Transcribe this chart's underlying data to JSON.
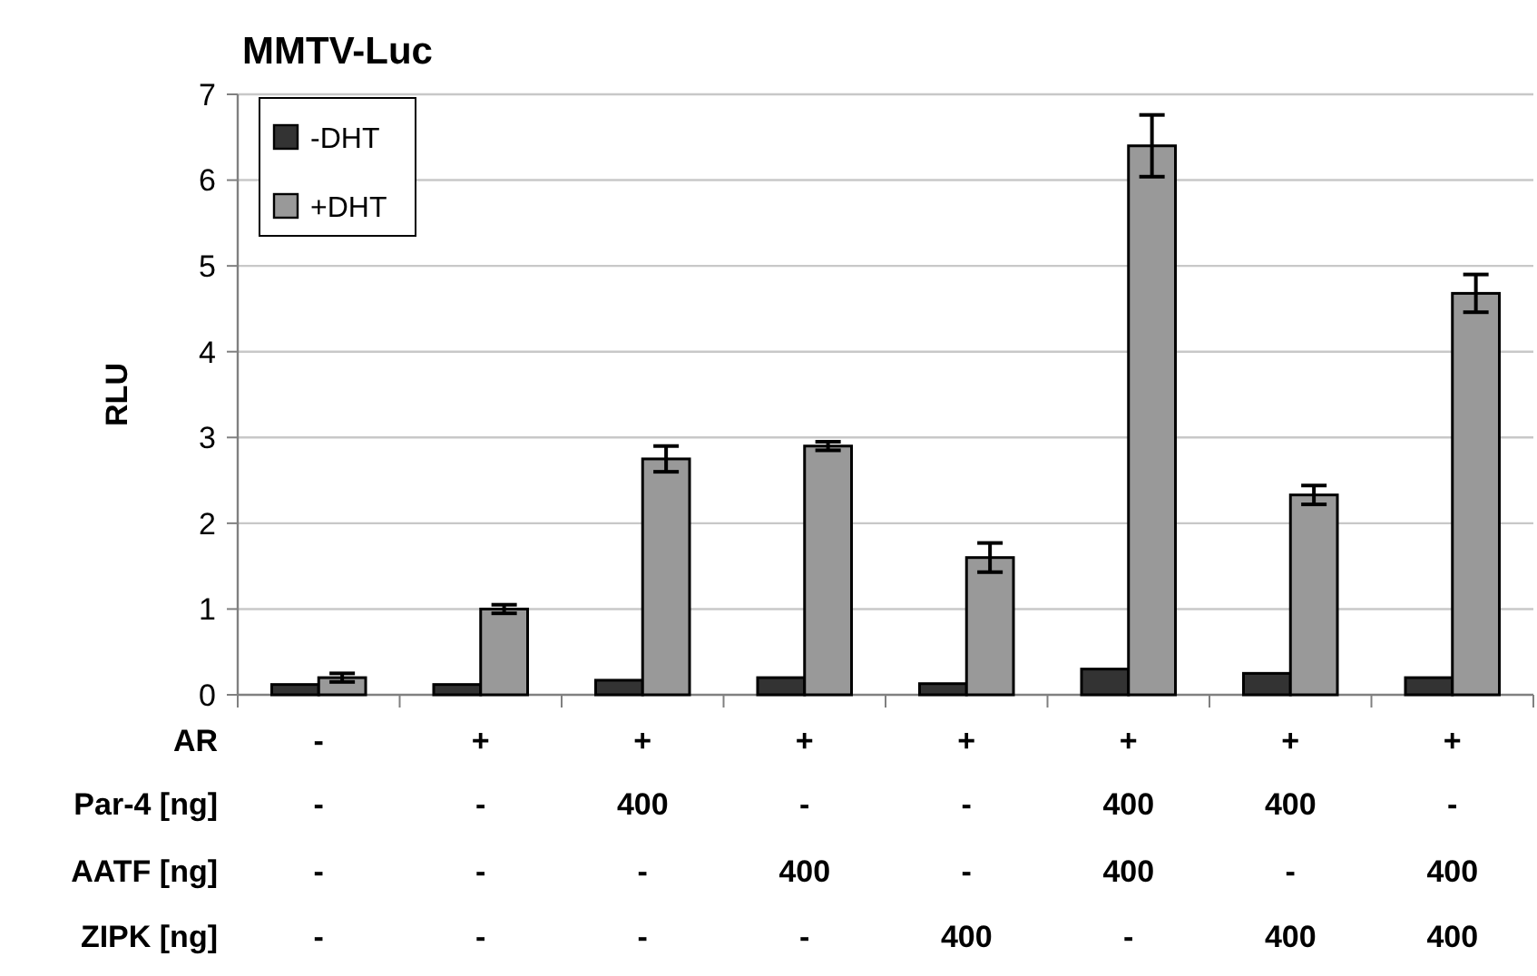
{
  "chart_data": {
    "type": "bar",
    "title": "MMTV-Luc",
    "ylabel": "RLU",
    "categories": [
      "-\n-\n-\n-",
      "+\n-\n-\n-",
      "+\n400\n-\n-",
      "+\n-\n400\n-",
      "+\n-\n-\n400",
      "+\n400\n400\n-",
      "+\n400\n-\n400",
      "+\n-\n400\n400"
    ],
    "annotations": [
      "AR",
      "Par-4 [ng]",
      "AATF [ng]",
      "ZIPK [ng]"
    ],
    "series": [
      {
        "name": "-DHT",
        "color": "#333333",
        "values": [
          0.12,
          0.12,
          0.17,
          0.2,
          0.13,
          0.3,
          0.25,
          0.2
        ]
      },
      {
        "name": "+DHT",
        "color": "#999999",
        "values": [
          0.2,
          1.0,
          2.75,
          2.9,
          1.6,
          6.4,
          2.33,
          4.68
        ],
        "errors": [
          0.05,
          0.05,
          0.15,
          0.05,
          0.17,
          0.36,
          0.11,
          0.22
        ]
      }
    ],
    "ylim": [
      0,
      7
    ],
    "yticks": [
      0,
      1,
      2,
      3,
      4,
      5,
      6,
      7
    ],
    "grid": "y",
    "legend": "top left"
  }
}
